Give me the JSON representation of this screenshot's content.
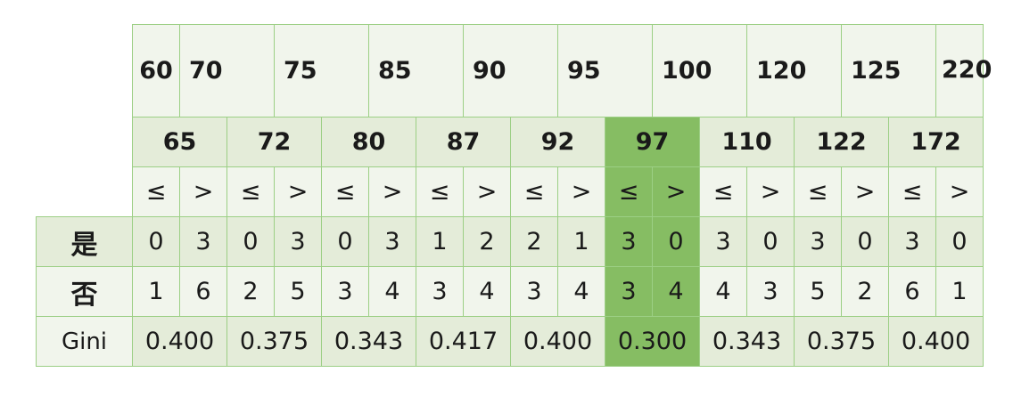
{
  "row_labels": {
    "yes": "是",
    "no": "否",
    "gini": "Gini"
  },
  "values": [
    "60",
    "70",
    "75",
    "85",
    "90",
    "95",
    "100",
    "120",
    "125",
    "220"
  ],
  "splits": [
    "65",
    "72",
    "80",
    "87",
    "92",
    "97",
    "110",
    "122",
    "172"
  ],
  "le_symbol": "≤",
  "gt_symbol": ">",
  "yes_counts": [
    "0",
    "3",
    "0",
    "3",
    "0",
    "3",
    "1",
    "2",
    "2",
    "1",
    "3",
    "0",
    "3",
    "0",
    "3",
    "0",
    "3",
    "0"
  ],
  "no_counts": [
    "1",
    "6",
    "2",
    "5",
    "3",
    "4",
    "3",
    "4",
    "3",
    "4",
    "3",
    "4",
    "4",
    "3",
    "5",
    "2",
    "6",
    "1"
  ],
  "gini": [
    "0.400",
    "0.375",
    "0.343",
    "0.417",
    "0.400",
    "0.300",
    "0.343",
    "0.375",
    "0.400"
  ],
  "highlight_split": "97",
  "colors": {
    "border": "#9ccf85",
    "light": "#f1f5ec",
    "mid": "#e4ecd9",
    "highlight": "#86bd63"
  }
}
